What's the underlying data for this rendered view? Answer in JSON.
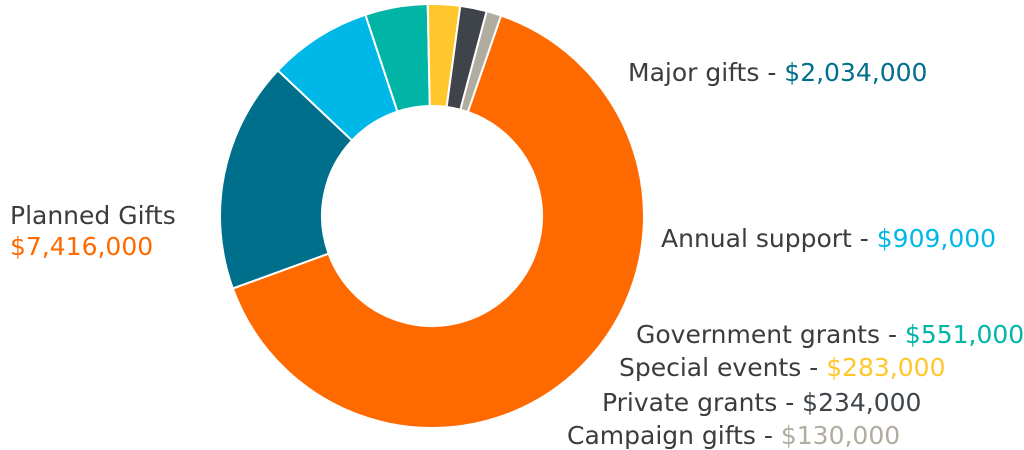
{
  "chart_data": {
    "type": "pie",
    "variant": "donut",
    "title": "",
    "slices": [
      {
        "name": "Planned Gifts",
        "value": 7416000,
        "value_label": "$7,416,000",
        "color": "#ff6a00"
      },
      {
        "name": "Major gifts",
        "value": 2034000,
        "value_label": "$2,034,000",
        "color": "#006f8c"
      },
      {
        "name": "Annual support",
        "value": 909000,
        "value_label": "$909,000",
        "color": "#00b8e8"
      },
      {
        "name": "Government grants",
        "value": 551000,
        "value_label": "$551,000",
        "color": "#00b5a6"
      },
      {
        "name": "Special events",
        "value": 283000,
        "value_label": "$283,000",
        "color": "#ffc72c"
      },
      {
        "name": "Private grants",
        "value": 234000,
        "value_label": "$234,000",
        "color": "#3e4449"
      },
      {
        "name": "Campaign gifts",
        "value": 130000,
        "value_label": "$130,000",
        "color": "#b1aca0"
      }
    ],
    "separator": " - ",
    "text_color": "#3c3c3c",
    "legend": "none"
  }
}
